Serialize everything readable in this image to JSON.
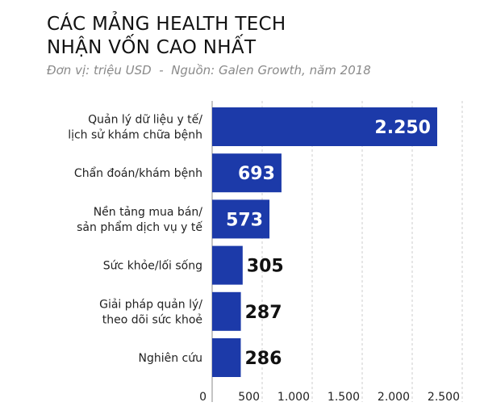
{
  "chart_data": {
    "type": "bar",
    "orientation": "horizontal",
    "title": "CÁC MẢNG HEALTH TECH NHẬN VỐN CAO NHẤT",
    "title_lines": [
      "CÁC MẢNG HEALTH TECH",
      "NHẬN VỐN CAO NHẤT"
    ],
    "subtitle": "Đơn vị: triệu USD  -  Nguồn: Galen Growth, năm 2018",
    "categories": [
      [
        "Quản lý dữ liệu y tế/",
        "lịch sử khám chữa bệnh"
      ],
      [
        "Chẩn đoán/khám bệnh"
      ],
      [
        "Nền tảng mua bán/",
        "sản phẩm dịch vụ y tế"
      ],
      [
        "Sức khỏe/lối sống"
      ],
      [
        "Giải pháp quản lý/",
        "theo dõi sức khoẻ"
      ],
      [
        "Nghiên cứu"
      ]
    ],
    "values": [
      2250,
      693,
      573,
      305,
      287,
      286
    ],
    "data_labels": [
      "2.250",
      "693",
      "573",
      "305",
      "287",
      "286"
    ],
    "xlim": [
      0,
      2500
    ],
    "ticks": [
      0,
      500,
      1000,
      1500,
      2000,
      2500
    ],
    "tick_labels": [
      "0",
      "500",
      "1.000",
      "1.500",
      "2.000",
      "2.500"
    ],
    "grid": true,
    "bar_color": "#1c3aa9"
  }
}
